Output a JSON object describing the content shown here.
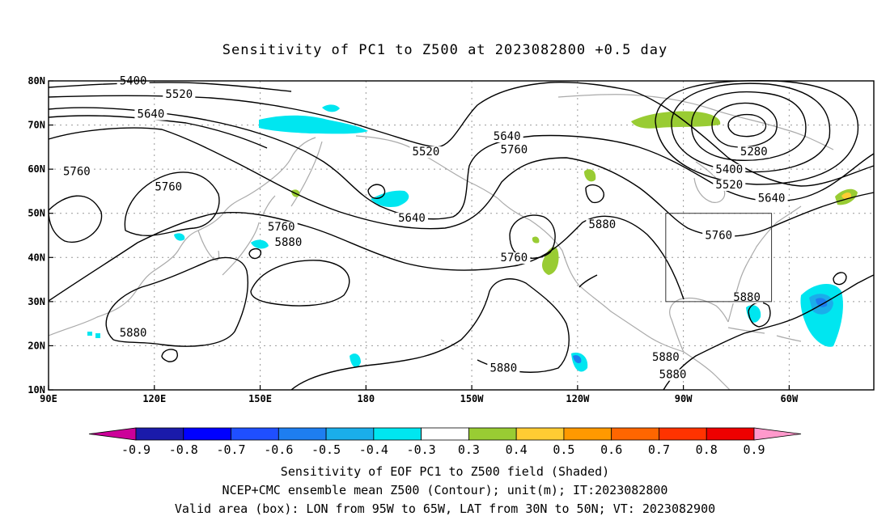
{
  "title": "Sensitivity of PC1 to Z500 at 2023082800 +0.5 day",
  "lat_labels": [
    "80N",
    "70N",
    "60N",
    "50N",
    "40N",
    "30N",
    "20N",
    "10N"
  ],
  "lon_labels": [
    "90E",
    "120E",
    "150E",
    "180",
    "150W",
    "120W",
    "90W",
    "60W"
  ],
  "colorbar": {
    "labels": [
      "-0.9",
      "-0.8",
      "-0.7",
      "-0.6",
      "-0.5",
      "-0.4",
      "-0.3",
      "0.3",
      "0.4",
      "0.5",
      "0.6",
      "0.7",
      "0.8",
      "0.9"
    ],
    "colors": [
      "#1a1aaa",
      "#0000ff",
      "#1f4fff",
      "#1e7ef0",
      "#1aaeea",
      "#00e6f0",
      "#ffffff",
      "#99cc33",
      "#ffcc33",
      "#ff9900",
      "#ff6600",
      "#ff3300",
      "#ee0000"
    ],
    "low_arrow": "#cc0099",
    "high_arrow": "#ff99cc"
  },
  "contour_labels": [
    {
      "text": "5400",
      "lon": 114,
      "lat": 79.5
    },
    {
      "text": "5520",
      "lon": 127,
      "lat": 76.5
    },
    {
      "text": "5640",
      "lon": 119,
      "lat": 72
    },
    {
      "text": "5760",
      "lon": 98,
      "lat": 59
    },
    {
      "text": "5760",
      "lon": 124,
      "lat": 55.5
    },
    {
      "text": "5520",
      "lon": 197,
      "lat": 63.5
    },
    {
      "text": "5640",
      "lon": 220,
      "lat": 67
    },
    {
      "text": "5760",
      "lon": 222,
      "lat": 64
    },
    {
      "text": "5640",
      "lon": 193,
      "lat": 48.5
    },
    {
      "text": "5760",
      "lon": 156,
      "lat": 46.5
    },
    {
      "text": "5880",
      "lon": 158,
      "lat": 43
    },
    {
      "text": "5760",
      "lon": 222,
      "lat": 39.5
    },
    {
      "text": "5880",
      "lon": 247,
      "lat": 47
    },
    {
      "text": "5280",
      "lon": 290,
      "lat": 63.5
    },
    {
      "text": "5400",
      "lon": 283,
      "lat": 59.5
    },
    {
      "text": "5520",
      "lon": 283,
      "lat": 56
    },
    {
      "text": "5640",
      "lon": 295,
      "lat": 53
    },
    {
      "text": "5760",
      "lon": 280,
      "lat": 44.5
    },
    {
      "text": "5880",
      "lon": 114,
      "lat": 22.5
    },
    {
      "text": "5880",
      "lon": 219,
      "lat": 14.5
    },
    {
      "text": "5880",
      "lon": 265,
      "lat": 17
    },
    {
      "text": "5880",
      "lon": 288,
      "lat": 30.5
    },
    {
      "text": "5880",
      "lon": 267,
      "lat": 13
    }
  ],
  "valid_box": {
    "lon_min": 265,
    "lon_max": 295,
    "lat_min": 30,
    "lat_max": 50
  },
  "footer": {
    "line1": "Sensitivity of EOF PC1 to Z500 field (Shaded)",
    "line2": "NCEP+CMC ensemble mean Z500 (Contour); unit(m); IT:2023082800",
    "line3": "Valid area (box): LON from 95W to 65W, LAT from 30N to 50N; VT: 2023082900"
  }
}
